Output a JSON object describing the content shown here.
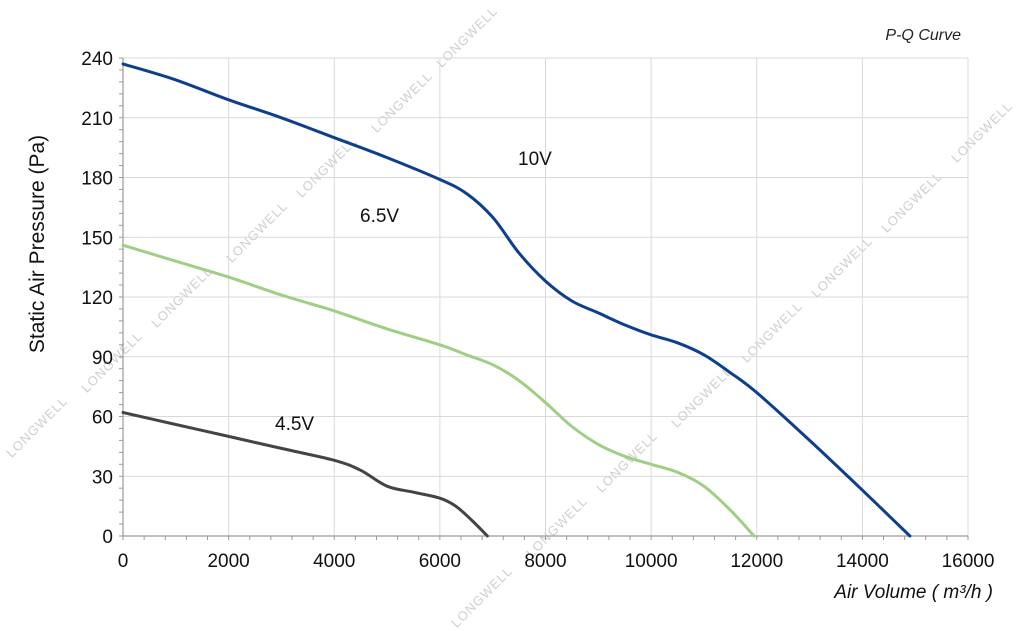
{
  "chart_data": {
    "type": "line",
    "title": "P-Q Curve",
    "xlabel": "Air Volume ( m³/h )",
    "ylabel": "Static Air Pressure  (Pa)",
    "xlim": [
      0,
      16000
    ],
    "ylim": [
      0,
      240
    ],
    "x_ticks": [
      "0",
      "2000",
      "4000",
      "6000",
      "8000",
      "10000",
      "12000",
      "14000",
      "16000"
    ],
    "y_ticks": [
      "0",
      "30",
      "60",
      "90",
      "120",
      "150",
      "180",
      "210",
      "240"
    ],
    "grid": true,
    "watermark": "LONGWELL",
    "series": [
      {
        "name": "10V",
        "color": "#0d3f8c",
        "x": [
          0,
          1000,
          2000,
          3000,
          4000,
          5000,
          6000,
          6500,
          7000,
          7500,
          8000,
          8500,
          9000,
          9500,
          10000,
          10500,
          11000,
          11500,
          12000,
          13000,
          14000,
          14900
        ],
        "y": [
          237,
          229,
          219,
          210,
          200,
          190,
          179,
          172,
          160,
          142,
          128,
          118,
          112,
          106,
          101,
          97,
          91,
          82,
          72,
          48,
          23,
          0
        ]
      },
      {
        "name": "6.5V",
        "color": "#9fcf84",
        "x": [
          0,
          1000,
          2000,
          3000,
          4000,
          5000,
          6000,
          6500,
          7000,
          7500,
          8000,
          8500,
          9000,
          9500,
          10000,
          10500,
          11000,
          11500,
          11950
        ],
        "y": [
          146,
          138,
          130,
          121,
          113,
          104,
          96,
          91,
          86,
          78,
          67,
          55,
          46,
          40,
          36,
          32,
          25,
          13,
          0
        ]
      },
      {
        "name": "4.5V",
        "color": "#444444",
        "x": [
          0,
          1000,
          2000,
          3000,
          4000,
          4500,
          5000,
          5500,
          6000,
          6300,
          6600,
          6900
        ],
        "y": [
          62,
          56,
          50,
          44,
          38,
          33,
          25,
          22,
          19,
          15,
          8,
          0
        ]
      }
    ]
  }
}
